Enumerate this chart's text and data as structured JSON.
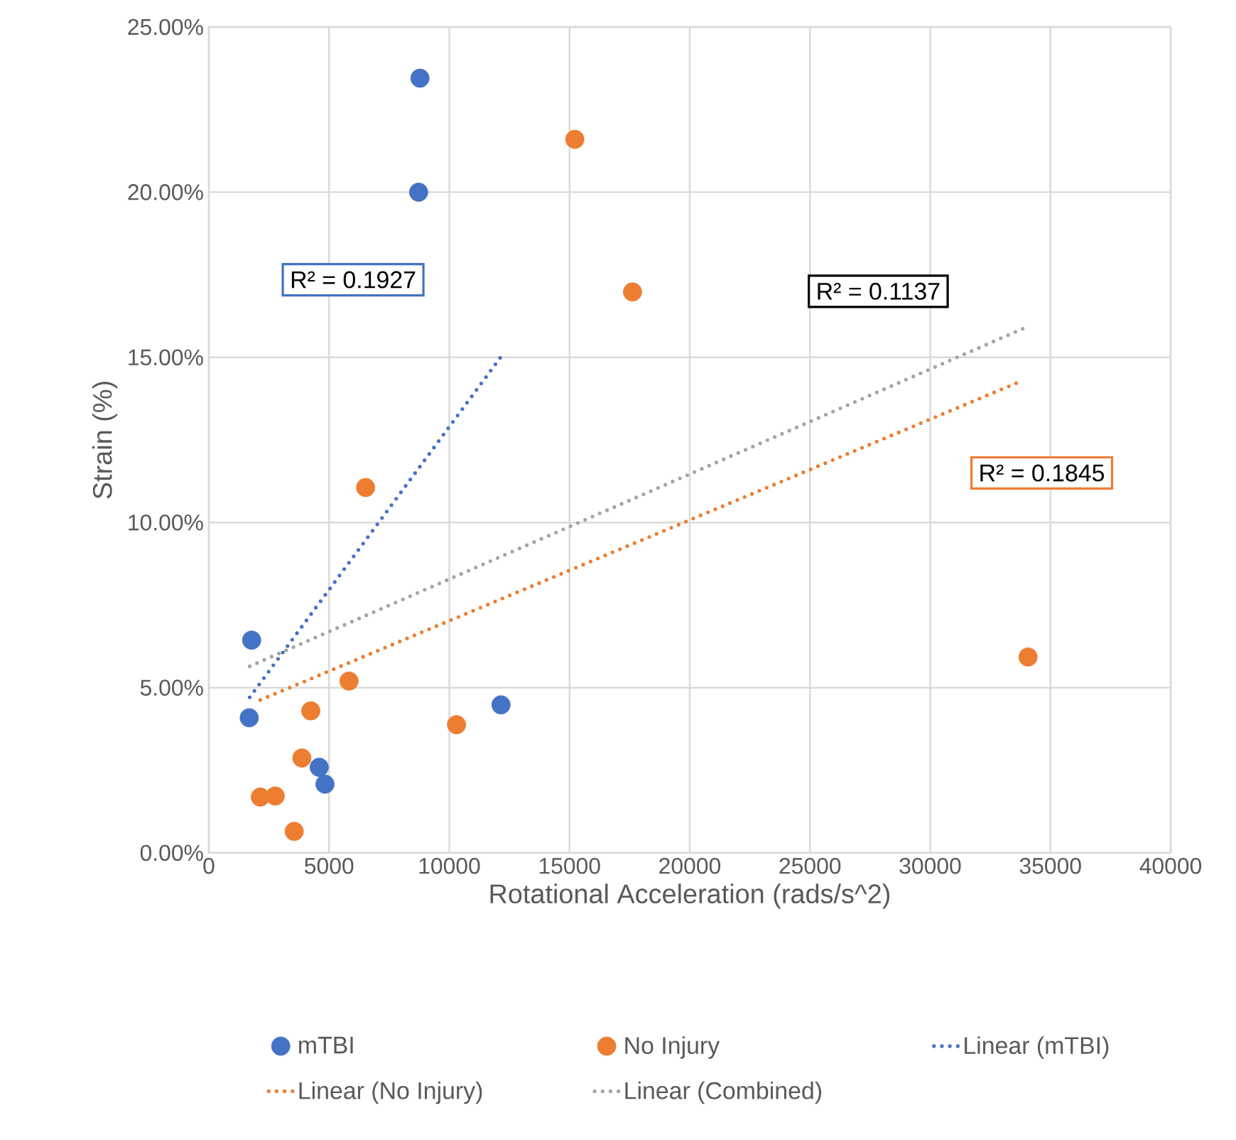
{
  "chart_data": {
    "type": "scatter",
    "xlabel": "Rotational Acceleration (rads/s^2)",
    "ylabel": "Strain (%)",
    "xlim": [
      0,
      40000
    ],
    "ylim": [
      0,
      25
    ],
    "xticks": [
      0,
      5000,
      10000,
      15000,
      20000,
      25000,
      30000,
      35000,
      40000
    ],
    "yticks": [
      {
        "value": 0,
        "label": "0.00%"
      },
      {
        "value": 5,
        "label": "5.00%"
      },
      {
        "value": 10,
        "label": "10.00%"
      },
      {
        "value": 15,
        "label": "15.00%"
      },
      {
        "value": 20,
        "label": "20.00%"
      },
      {
        "value": 25,
        "label": "25.00%"
      }
    ],
    "grid": true,
    "legend": "bottom",
    "series": [
      {
        "name": "mTBI",
        "color": "#4472c4",
        "marker": "circle",
        "x": [
          8780,
          8725,
          1780,
          1680,
          12150,
          4590,
          4830
        ],
        "values": [
          23.45,
          20.0,
          6.44,
          4.09,
          4.48,
          2.59,
          2.08
        ]
      },
      {
        "name": "No Injury",
        "color": "#ed7d31",
        "marker": "circle",
        "x": [
          15220,
          17620,
          6520,
          5830,
          4240,
          10300,
          3870,
          2140,
          2760,
          3550,
          34070
        ],
        "values": [
          21.6,
          16.98,
          11.06,
          5.2,
          4.3,
          3.88,
          2.87,
          1.69,
          1.72,
          0.65,
          5.93
        ]
      },
      {
        "name": "Linear (mTBI)",
        "type": "line",
        "line_style": "dotted",
        "marker": "none",
        "color": "#4472c4",
        "x": [
          1700,
          12170
        ],
        "values": [
          4.71,
          15.04
        ]
      },
      {
        "name": "Linear (No Injury)",
        "type": "line",
        "line_style": "dotted",
        "marker": "none",
        "color": "#ed7d31",
        "x": [
          2140,
          33680
        ],
        "values": [
          4.63,
          14.25
        ]
      },
      {
        "name": "Linear (Combined)",
        "type": "line",
        "line_style": "dotted",
        "marker": "none",
        "color": "#a5a5a5",
        "x": [
          1700,
          33950
        ],
        "values": [
          5.65,
          15.9
        ]
      }
    ],
    "annotations": [
      "R² = 0.1927",
      "R² = 0.1137",
      "R² = 0.1845"
    ]
  }
}
